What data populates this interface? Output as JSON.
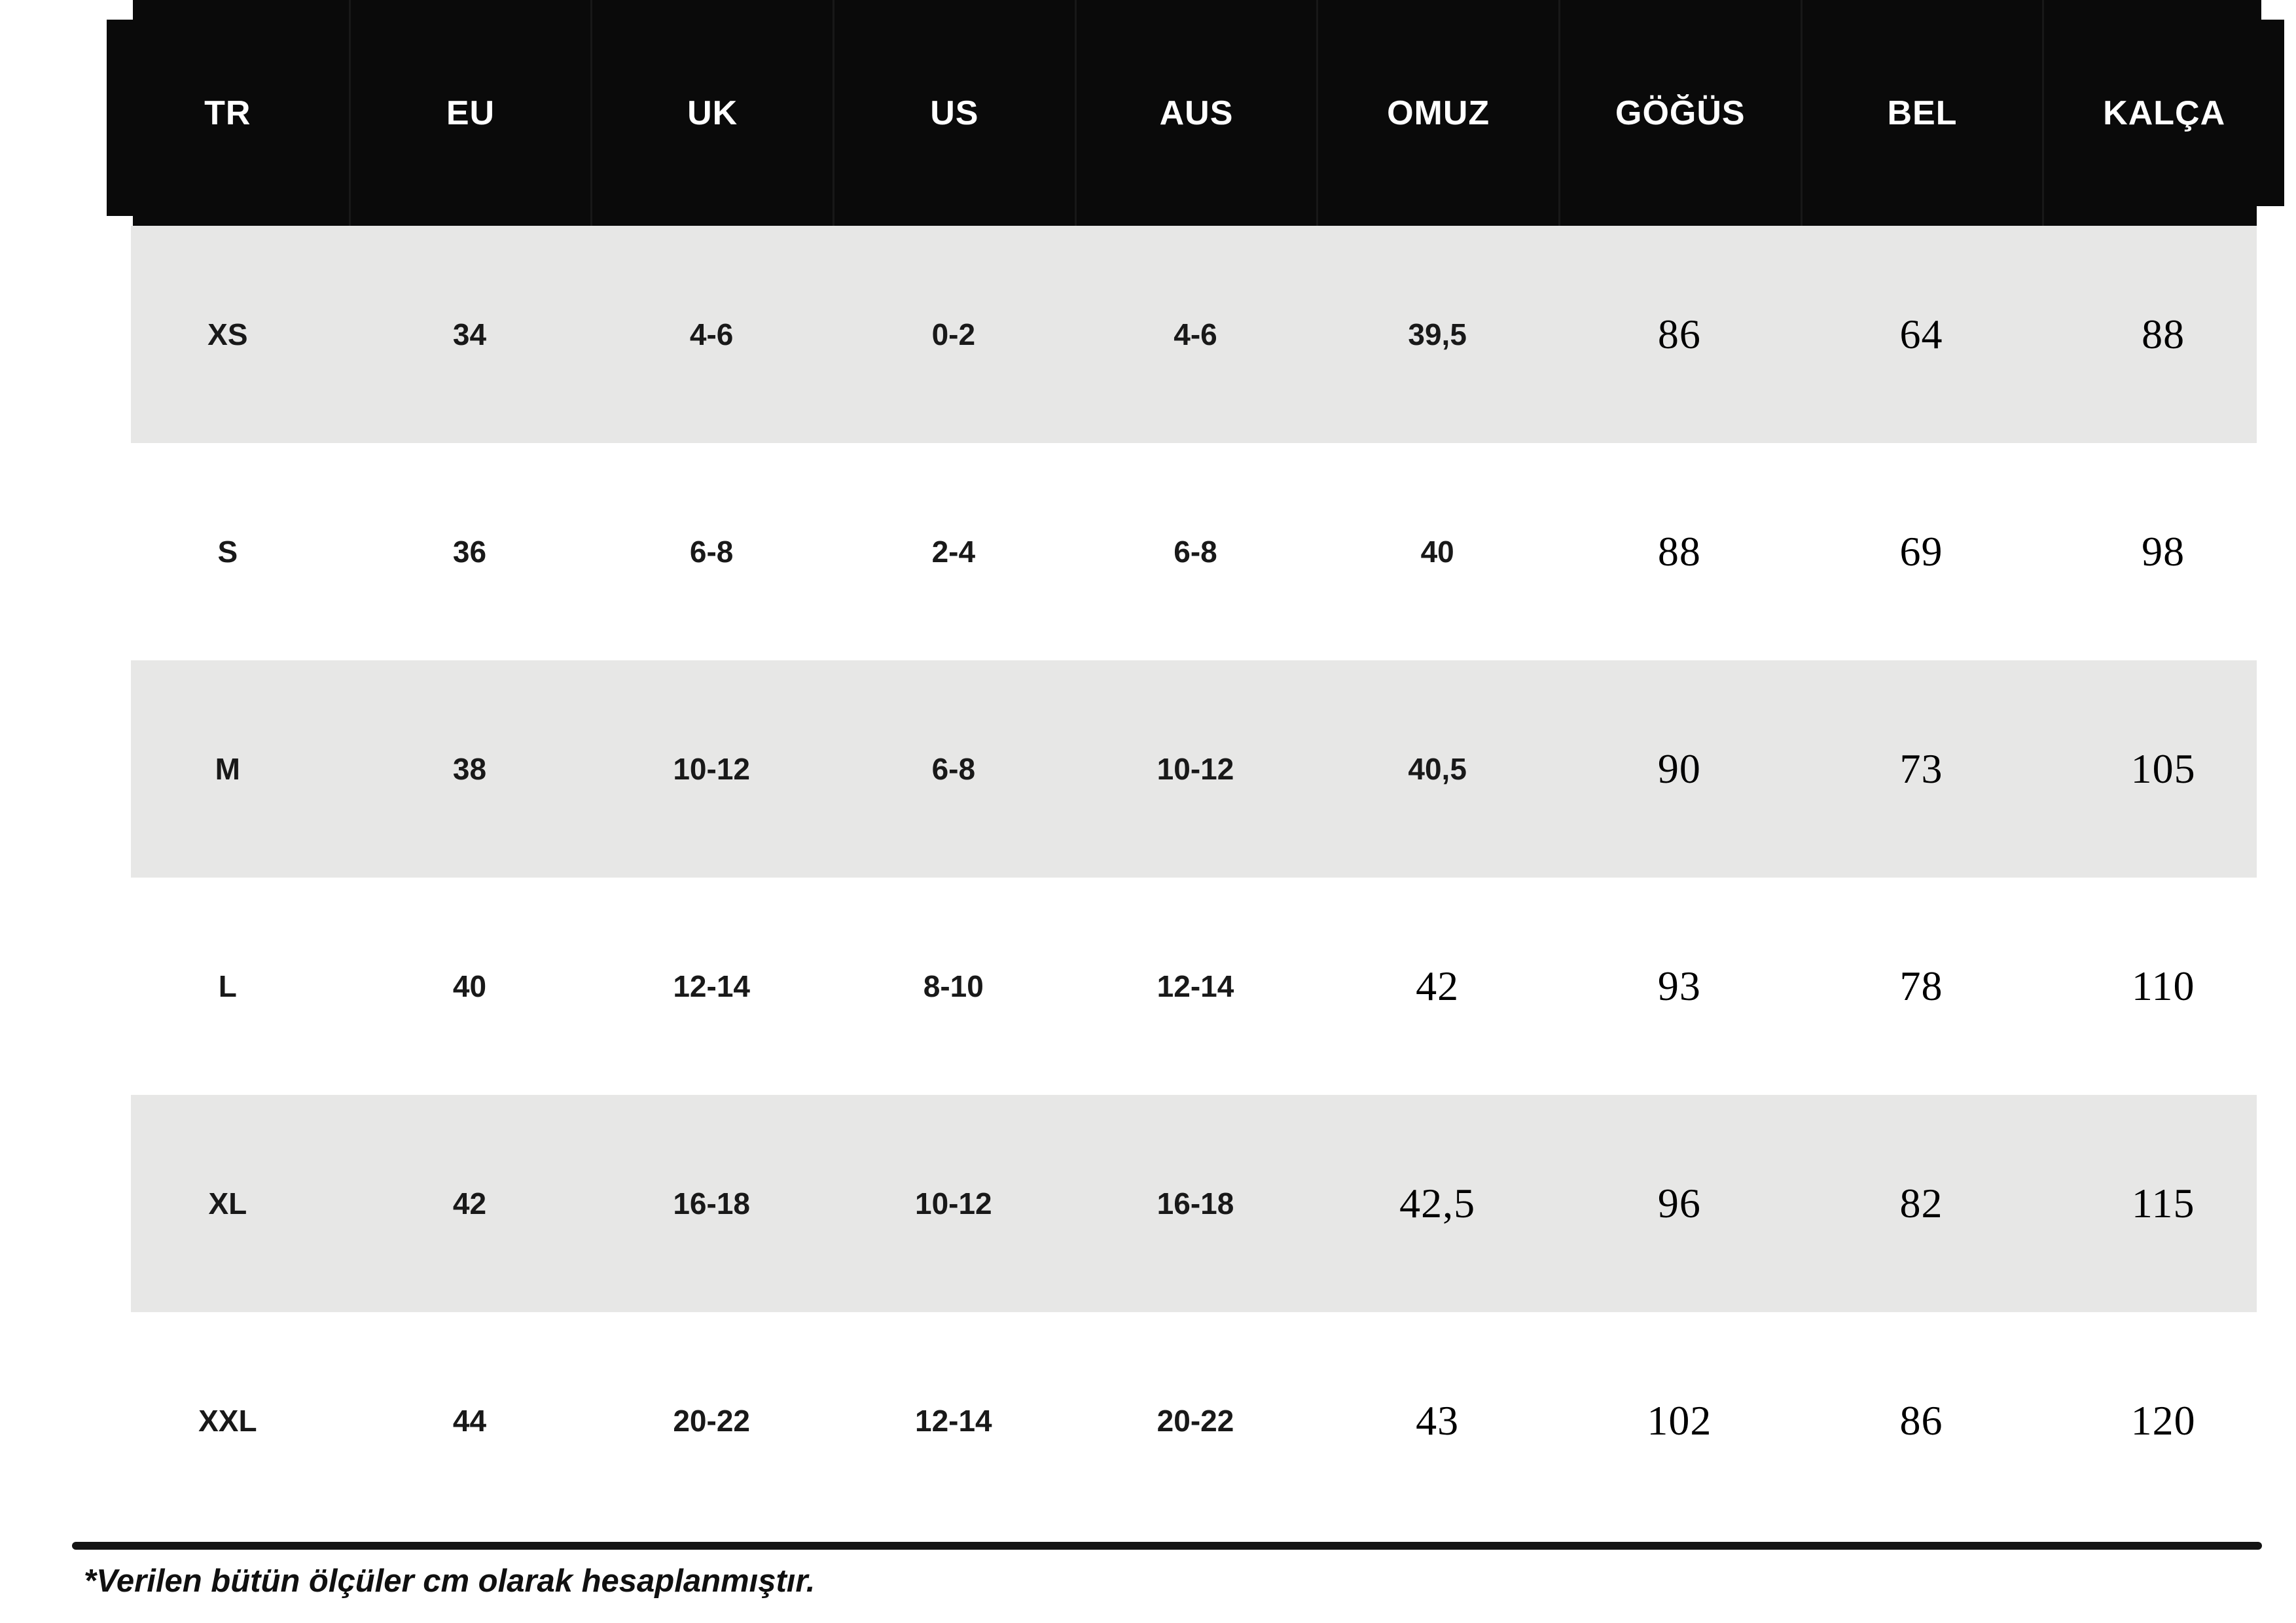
{
  "table": {
    "columns": [
      "TR",
      "EU",
      "UK",
      "US",
      "AUS",
      "OMUZ",
      "GÖĞÜS",
      "BEL",
      "KALÇA"
    ],
    "column_keys": [
      "tr",
      "eu",
      "uk",
      "us",
      "aus",
      "omuz",
      "gogus",
      "bel",
      "kalca"
    ],
    "rows": [
      [
        "XS",
        "34",
        "4-6",
        "0-2",
        "4-6",
        "39,5",
        "86",
        "64",
        "88"
      ],
      [
        "S",
        "36",
        "6-8",
        "2-4",
        "6-8",
        "40",
        "88",
        "69",
        "98"
      ],
      [
        "M",
        "38",
        "10-12",
        "6-8",
        "10-12",
        "40,5",
        "90",
        "73",
        "105"
      ],
      [
        "L",
        "40",
        "12-14",
        "8-10",
        "12-14",
        "42",
        "93",
        "78",
        "110"
      ],
      [
        "XL",
        "42",
        "16-18",
        "10-12",
        "16-18",
        "42,5",
        "96",
        "82",
        "115"
      ],
      [
        "XXL",
        "44",
        "20-22",
        "12-14",
        "20-22",
        "43",
        "102",
        "86",
        "120"
      ]
    ]
  },
  "footnote": "*Verilen bütün ölçüler cm olarak hesaplanmıştır.",
  "colors": {
    "header_bg": "#0a0a0a",
    "header_text": "#ffffff",
    "row_alt_bg": "#e7e7e6",
    "row_bg": "#ffffff",
    "body_text": "#191919",
    "rule": "#141414"
  }
}
